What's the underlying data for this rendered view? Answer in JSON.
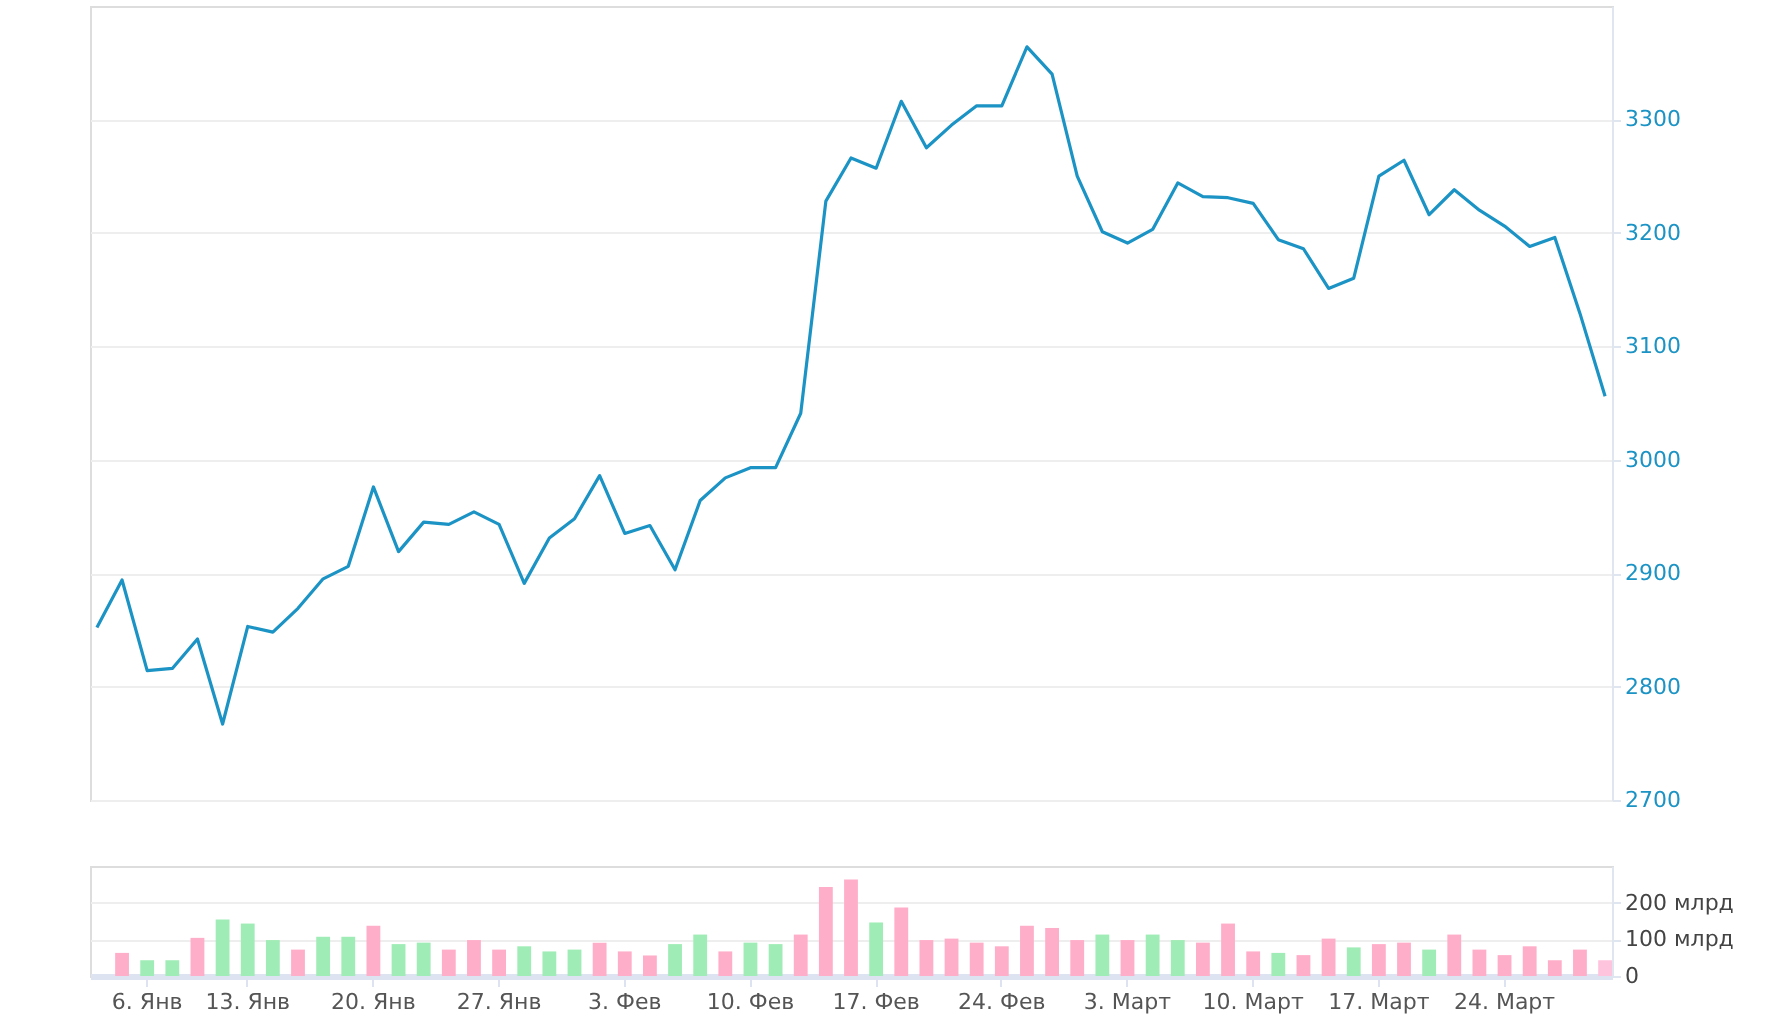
{
  "chart_data": [
    {
      "type": "line",
      "categories": [
        null,
        null,
        null,
        null,
        null,
        null,
        null,
        null,
        null,
        null,
        null,
        null,
        null,
        null,
        null,
        null,
        null,
        null,
        null,
        null,
        null,
        null,
        null,
        null,
        null,
        null,
        null,
        null,
        null,
        null,
        null,
        null,
        null,
        null,
        null,
        null,
        null,
        null,
        null,
        null,
        null,
        null,
        null,
        null,
        null,
        null,
        null,
        null,
        null,
        null,
        null,
        null,
        null,
        null,
        null,
        null,
        null,
        null,
        null,
        null,
        null
      ],
      "series": [
        {
          "color": "#1b93c4",
          "values": [
            2852,
            2894,
            2814,
            2816,
            2842,
            2767,
            2853,
            2848,
            2869,
            2895,
            2906,
            2976,
            2919,
            2945,
            2943,
            2954,
            2943,
            2891,
            2931,
            2948,
            2986,
            2935,
            2942,
            2903,
            2964,
            2984,
            2993,
            2993,
            3041,
            3228,
            3266,
            3257,
            3316,
            3275,
            3295,
            3312,
            3312,
            3364,
            3340,
            3250,
            3201,
            3191,
            3203,
            3244,
            3232,
            3231,
            3226,
            3194,
            3186,
            3151,
            3160,
            3250,
            3264,
            3216,
            3238,
            3220,
            3206,
            3188,
            3196,
            3129,
            3056
          ]
        }
      ],
      "ylim": [
        2700,
        3400
      ],
      "yticks": [
        2700,
        2800,
        2900,
        3000,
        3100,
        3200,
        3300
      ],
      "grid": "y",
      "tick_labels": "y",
      "marker": "none",
      "line_style": "solid"
    },
    {
      "type": "bar",
      "categories": [
        null,
        null,
        "6. Янв",
        null,
        null,
        null,
        "13. Янв",
        null,
        null,
        null,
        null,
        "20. Янв",
        null,
        null,
        null,
        null,
        "27. Янв",
        null,
        null,
        null,
        null,
        "3. Фев",
        null,
        null,
        null,
        null,
        "10. Фев",
        null,
        null,
        null,
        null,
        "17. Фев",
        null,
        null,
        null,
        null,
        "24. Фев",
        null,
        null,
        null,
        null,
        "3. Март",
        null,
        null,
        null,
        null,
        "10. Март",
        null,
        null,
        null,
        null,
        "17. Март",
        null,
        null,
        null,
        null,
        "24. Март",
        null,
        null,
        null,
        null
      ],
      "values": [
        null,
        63,
        43,
        43,
        104,
        154,
        143,
        98,
        72,
        107,
        107,
        137,
        87,
        91,
        72,
        98,
        72,
        81,
        67,
        72,
        91,
        67,
        56,
        87,
        113,
        67,
        91,
        87,
        113,
        243,
        263,
        146,
        187,
        98,
        102,
        91,
        81,
        137,
        131,
        98,
        113,
        98,
        113,
        98,
        91,
        143,
        67,
        63,
        57,
        102,
        78,
        87,
        91,
        72,
        113,
        72,
        57,
        81,
        43,
        72,
        43
      ],
      "colors": [
        "#ffaec9",
        "#ffaec9",
        "#a0ecb6",
        "#a0ecb6",
        "#ffaec9",
        "#a0ecb6",
        "#a0ecb6",
        "#a0ecb6",
        "#ffaec9",
        "#a0ecb6",
        "#a0ecb6",
        "#ffaec9",
        "#a0ecb6",
        "#a0ecb6",
        "#ffaec9",
        "#ffaec9",
        "#ffaec9",
        "#a0ecb6",
        "#a0ecb6",
        "#a0ecb6",
        "#ffaec9",
        "#ffaec9",
        "#ffaec9",
        "#a0ecb6",
        "#a0ecb6",
        "#ffaec9",
        "#a0ecb6",
        "#a0ecb6",
        "#ffaec9",
        "#ffaec9",
        "#ffaec9",
        "#a0ecb6",
        "#ffaec9",
        "#ffaec9",
        "#ffaec9",
        "#ffaec9",
        "#ffaec9",
        "#ffaec9",
        "#ffaec9",
        "#ffaec9",
        "#a0ecb6",
        "#ffaec9",
        "#a0ecb6",
        "#a0ecb6",
        "#ffaec9",
        "#ffaec9",
        "#ffaec9",
        "#a0ecb6",
        "#ffaec9",
        "#ffaec9",
        "#a0ecb6",
        "#ffaec9",
        "#ffaec9",
        "#a0ecb6",
        "#ffaec9",
        "#ffaec9",
        "#ffaec9",
        "#ffaec9",
        "#ffaec9",
        "#ffaec9",
        "#ffc4dd"
      ],
      "ylim": [
        0,
        300
      ],
      "yticks": [
        0,
        {
          "value": 100,
          "label": "100 млрд"
        },
        {
          "value": 200,
          "label": "200 млрд"
        }
      ],
      "grid": "y"
    }
  ]
}
